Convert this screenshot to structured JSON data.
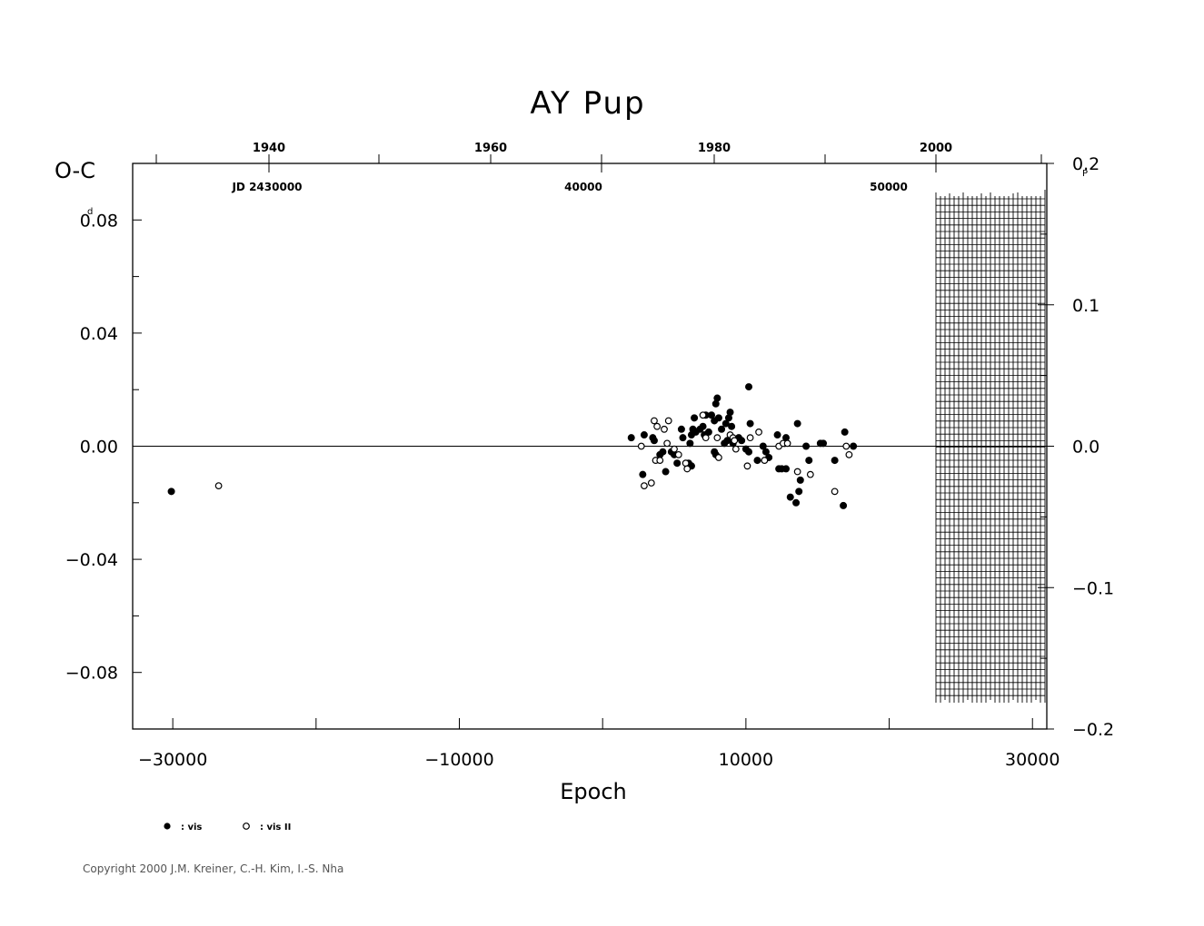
{
  "chart_data": {
    "type": "scatter",
    "title": "AY Pup",
    "xlabel": "Epoch",
    "ylabel": "O-C",
    "ylabel_unit": "d",
    "y2_unit": "P",
    "xlim": [
      -32800,
      31000
    ],
    "ylim": [
      -0.1,
      0.1
    ],
    "y2lim": [
      -0.2,
      0.2
    ],
    "x_ticks": [
      "-30000",
      "-10000",
      "10000",
      "30000"
    ],
    "y_ticks": [
      "0.08",
      "0.04",
      "0.00",
      "-0.04",
      "-0.08"
    ],
    "y2_ticks": [
      "0.2",
      "0.1",
      "0.0",
      "-0.1",
      "-0.2"
    ],
    "top_axis_years": [
      "1940",
      "1960",
      "1980",
      "2000"
    ],
    "top_axis_jd": [
      "JD 2430000",
      "40000",
      "50000"
    ],
    "zero_line": true,
    "legend_position": "bottom-left",
    "series": [
      {
        "name": ": vis",
        "marker": "filled-circle",
        "points": [
          [
            -30100,
            -0.016
          ],
          [
            2000,
            0.003
          ],
          [
            2800,
            -0.01
          ],
          [
            2900,
            0.004
          ],
          [
            3500,
            0.003
          ],
          [
            3600,
            0.002
          ],
          [
            4000,
            -0.003
          ],
          [
            4200,
            -0.002
          ],
          [
            4400,
            -0.009
          ],
          [
            4800,
            -0.002
          ],
          [
            5000,
            -0.003
          ],
          [
            5200,
            -0.006
          ],
          [
            5500,
            0.006
          ],
          [
            5600,
            0.003
          ],
          [
            6000,
            -0.006
          ],
          [
            6200,
            -0.007
          ],
          [
            6100,
            0.001
          ],
          [
            6200,
            0.004
          ],
          [
            6300,
            0.006
          ],
          [
            6400,
            0.01
          ],
          [
            6500,
            0.005
          ],
          [
            6800,
            0.006
          ],
          [
            7000,
            0.007
          ],
          [
            7100,
            0.004
          ],
          [
            7200,
            0.011
          ],
          [
            7400,
            0.005
          ],
          [
            7600,
            0.011
          ],
          [
            7800,
            0.009
          ],
          [
            7900,
            0.015
          ],
          [
            8000,
            0.017
          ],
          [
            8100,
            0.01
          ],
          [
            8300,
            0.006
          ],
          [
            7800,
            -0.002
          ],
          [
            7900,
            -0.003
          ],
          [
            8500,
            0.001
          ],
          [
            8600,
            0.008
          ],
          [
            8800,
            0.01
          ],
          [
            8900,
            0.012
          ],
          [
            9000,
            0.007
          ],
          [
            8700,
            0.002
          ],
          [
            9100,
            0.001
          ],
          [
            9500,
            0.003
          ],
          [
            9700,
            0.002
          ],
          [
            10000,
            -0.001
          ],
          [
            10200,
            0.021
          ],
          [
            10300,
            0.008
          ],
          [
            10200,
            -0.002
          ],
          [
            10800,
            -0.005
          ],
          [
            11200,
            0.0
          ],
          [
            11400,
            -0.002
          ],
          [
            11600,
            -0.004
          ],
          [
            12200,
            0.004
          ],
          [
            12300,
            -0.008
          ],
          [
            12500,
            -0.008
          ],
          [
            12700,
            0.001
          ],
          [
            12800,
            0.003
          ],
          [
            12800,
            -0.008
          ],
          [
            13100,
            -0.018
          ],
          [
            13500,
            -0.02
          ],
          [
            13700,
            -0.016
          ],
          [
            13800,
            -0.012
          ],
          [
            13600,
            0.008
          ],
          [
            14200,
            0.0
          ],
          [
            14400,
            -0.005
          ],
          [
            15200,
            0.001
          ],
          [
            15400,
            0.001
          ],
          [
            16200,
            -0.005
          ],
          [
            16800,
            -0.021
          ],
          [
            16900,
            0.005
          ],
          [
            17500,
            0.0
          ]
        ]
      },
      {
        "name": ": vis II",
        "marker": "open-circle",
        "points": [
          [
            -26800,
            -0.014
          ],
          [
            2700,
            0.0
          ],
          [
            2900,
            -0.014
          ],
          [
            3400,
            -0.013
          ],
          [
            3600,
            0.009
          ],
          [
            3700,
            -0.005
          ],
          [
            3800,
            0.007
          ],
          [
            4000,
            -0.005
          ],
          [
            4300,
            0.006
          ],
          [
            4500,
            0.001
          ],
          [
            4600,
            0.009
          ],
          [
            5000,
            -0.001
          ],
          [
            5300,
            -0.003
          ],
          [
            5800,
            -0.006
          ],
          [
            5900,
            -0.008
          ],
          [
            7000,
            0.011
          ],
          [
            7200,
            0.003
          ],
          [
            8000,
            0.003
          ],
          [
            8100,
            -0.004
          ],
          [
            8900,
            0.004
          ],
          [
            9100,
            0.003
          ],
          [
            9200,
            0.002
          ],
          [
            9300,
            -0.001
          ],
          [
            10100,
            -0.007
          ],
          [
            10300,
            0.003
          ],
          [
            10900,
            0.005
          ],
          [
            11300,
            -0.005
          ],
          [
            12300,
            0.0
          ],
          [
            12600,
            0.001
          ],
          [
            12900,
            0.001
          ],
          [
            13600,
            -0.009
          ],
          [
            14500,
            -0.01
          ],
          [
            16200,
            -0.016
          ],
          [
            17000,
            0.0
          ],
          [
            17200,
            -0.003
          ]
        ]
      }
    ]
  },
  "copyright": "Copyright 2000 J.M. Kreiner, C.-H. Kim, I.-S. Nha"
}
